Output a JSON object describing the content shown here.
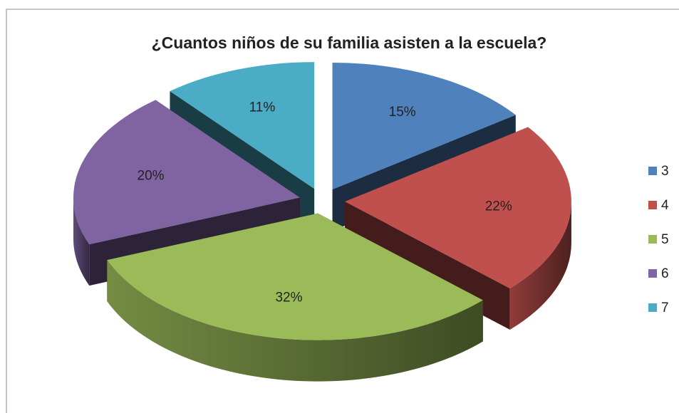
{
  "chart_data": {
    "type": "pie",
    "title": "¿Cuantos niños de su familia asisten a la escuela?",
    "categories": [
      "3",
      "4",
      "5",
      "6",
      "7"
    ],
    "values": [
      15,
      22,
      32,
      20,
      11
    ],
    "value_labels": [
      "15%",
      "22%",
      "32%",
      "20%",
      "11%"
    ],
    "colors": [
      "#4f81bd",
      "#c0504d",
      "#9bbb59",
      "#8064a2",
      "#4bacc6"
    ],
    "legend": "right"
  }
}
